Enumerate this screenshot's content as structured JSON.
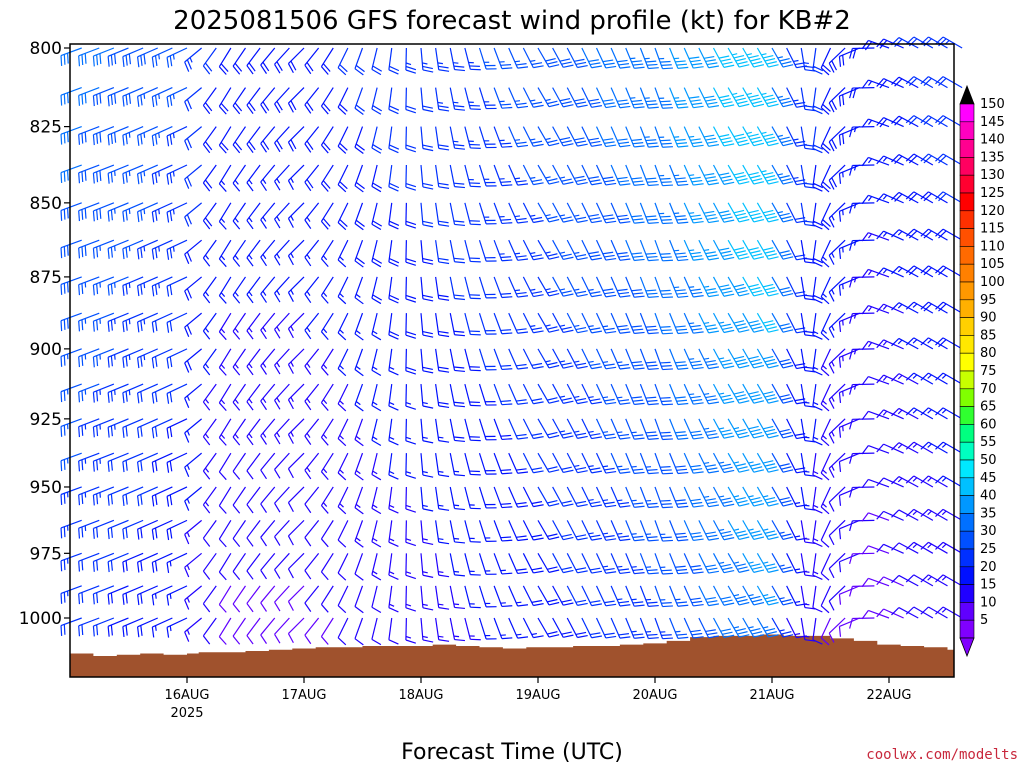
{
  "chart_data": {
    "type": "wind-barb-time-height",
    "title": "2025081506 GFS forecast wind profile (kt) for KB#2",
    "xlabel": "Forecast Time (UTC)",
    "ylabel": "",
    "credit": "coolwx.com/modelts",
    "x_ticks": [
      {
        "label": "16AUG",
        "sublabel": "2025",
        "day": 1.0
      },
      {
        "label": "17AUG",
        "sublabel": "",
        "day": 2.0
      },
      {
        "label": "18AUG",
        "sublabel": "",
        "day": 3.0
      },
      {
        "label": "19AUG",
        "sublabel": "",
        "day": 4.0
      },
      {
        "label": "20AUG",
        "sublabel": "",
        "day": 5.0
      },
      {
        "label": "21AUG",
        "sublabel": "",
        "day": 6.0
      },
      {
        "label": "22AUG",
        "sublabel": "",
        "day": 7.0
      }
    ],
    "x_range_days": [
      0.0,
      7.75
    ],
    "x_unit_note": "days after 15AUG2025 00Z",
    "y_ticks": [
      800,
      825,
      850,
      875,
      900,
      925,
      950,
      975,
      1000
    ],
    "ylim": [
      800,
      1020
    ],
    "y_axis_inverted": true,
    "pressure_levels": [
      1015,
      1000,
      987.5,
      975,
      962.5,
      950,
      937.5,
      925,
      912.5,
      900,
      887.5,
      875,
      862.5,
      850,
      837.5,
      825,
      812.5,
      800
    ],
    "colorbar": {
      "unit": "kt",
      "labels": [
        150,
        145,
        140,
        135,
        130,
        125,
        120,
        115,
        110,
        105,
        100,
        95,
        90,
        85,
        80,
        75,
        70,
        65,
        60,
        55,
        50,
        45,
        40,
        35,
        30,
        25,
        20,
        15,
        10,
        5
      ],
      "colors": [
        "#ff00ff",
        "#ff00c0",
        "#ff0090",
        "#ff0060",
        "#ff0030",
        "#ff0000",
        "#ff3000",
        "#ff5000",
        "#ff6a00",
        "#ff8000",
        "#ff9800",
        "#ffb000",
        "#ffd000",
        "#ffe800",
        "#ffff00",
        "#c8ff00",
        "#80ff00",
        "#30ff30",
        "#00ff80",
        "#00ffc0",
        "#00e8ff",
        "#00c0ff",
        "#0098ff",
        "#0070ff",
        "#0050ff",
        "#0030ff",
        "#0010ff",
        "#2000ff",
        "#6000ff",
        "#8000ff"
      ],
      "top_color": "#000000",
      "bottom_color": "#8000ff"
    },
    "terrain": {
      "color": "#a0522d",
      "surface_pressure": [
        [
          0.0,
          1014
        ],
        [
          0.2,
          1015
        ],
        [
          0.4,
          1014.5
        ],
        [
          0.6,
          1014
        ],
        [
          0.8,
          1014.5
        ],
        [
          1.0,
          1014
        ],
        [
          1.1,
          1013.5
        ],
        [
          1.3,
          1013.5
        ],
        [
          1.5,
          1013
        ],
        [
          1.7,
          1012.5
        ],
        [
          1.9,
          1012
        ],
        [
          2.1,
          1011.5
        ],
        [
          2.3,
          1011.5
        ],
        [
          2.5,
          1011
        ],
        [
          2.7,
          1011
        ],
        [
          2.9,
          1011
        ],
        [
          3.1,
          1010.5
        ],
        [
          3.3,
          1011
        ],
        [
          3.5,
          1011.5
        ],
        [
          3.7,
          1012
        ],
        [
          3.9,
          1011.5
        ],
        [
          4.1,
          1011.5
        ],
        [
          4.3,
          1011
        ],
        [
          4.5,
          1011
        ],
        [
          4.7,
          1010.5
        ],
        [
          4.9,
          1010
        ],
        [
          5.1,
          1009
        ],
        [
          5.3,
          1007.5
        ],
        [
          5.5,
          1007
        ],
        [
          5.7,
          1007
        ],
        [
          5.9,
          1006.5
        ],
        [
          6.1,
          1007
        ],
        [
          6.3,
          1007
        ],
        [
          6.5,
          1008
        ],
        [
          6.7,
          1009
        ],
        [
          6.9,
          1010.5
        ],
        [
          7.1,
          1011
        ],
        [
          7.3,
          1011.5
        ],
        [
          7.5,
          1012.5
        ],
        [
          7.75,
          1012.5
        ]
      ]
    },
    "wind_field": {
      "times_days": [
        0.1,
        0.25,
        0.375,
        0.5,
        0.625,
        0.75,
        0.875,
        1.0,
        1.125,
        1.25,
        1.375,
        1.5,
        1.625,
        1.75,
        1.875,
        2.0,
        2.125,
        2.25,
        2.375,
        2.5,
        2.625,
        2.75,
        2.875,
        3.0,
        3.125,
        3.25,
        3.375,
        3.5,
        3.625,
        3.75,
        3.875,
        4.0,
        4.125,
        4.25,
        4.375,
        4.5,
        4.625,
        4.75,
        4.875,
        5.0,
        5.125,
        5.25,
        5.375,
        5.5,
        5.625,
        5.75,
        5.875,
        6.0,
        6.125,
        6.25,
        6.375,
        6.5,
        6.625,
        6.75,
        6.875,
        7.0,
        7.125,
        7.25,
        7.375,
        7.5,
        7.625
      ],
      "key_times_days": [
        0.1,
        1.0,
        1.3,
        2.0,
        3.0,
        4.0,
        5.0,
        5.6,
        5.9,
        6.1,
        6.5,
        7.0,
        7.3,
        7.6
      ],
      "key_speed_kt": [
        22,
        16,
        9,
        9,
        13,
        18,
        25,
        33,
        35,
        15,
        10,
        8,
        11,
        13
      ],
      "key_direction_deg": [
        250,
        245,
        210,
        225,
        175,
        150,
        160,
        150,
        150,
        150,
        205,
        290,
        300,
        300
      ],
      "speed_increase_per_100hPa_kt": 5
    }
  }
}
